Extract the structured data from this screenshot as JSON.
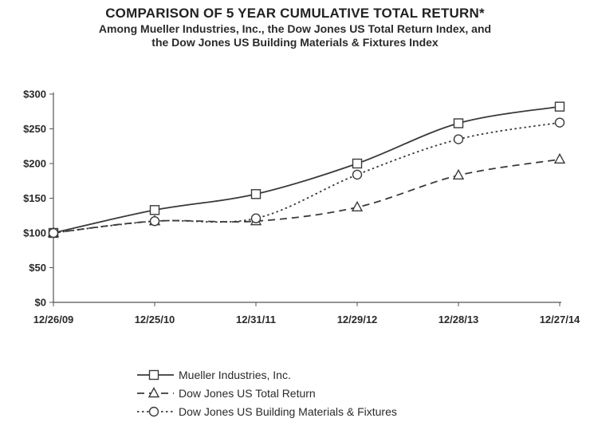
{
  "chart_data": {
    "type": "line",
    "title": "COMPARISON OF 5 YEAR CUMULATIVE TOTAL RETURN*",
    "subtitle": [
      "Among Mueller Industries, Inc., the Dow Jones US Total Return  Index, and",
      "the Dow Jones US Building Materials & Fixtures  Index"
    ],
    "categories": [
      "12/26/09",
      "12/25/10",
      "12/31/11",
      "12/29/12",
      "12/28/13",
      "12/27/14"
    ],
    "ylim": [
      0,
      300
    ],
    "yticks": [
      0,
      50,
      100,
      150,
      200,
      250,
      300
    ],
    "ytick_labels": [
      "$0",
      "$50",
      "$100",
      "$150",
      "$200",
      "$250",
      "$300"
    ],
    "grid": false,
    "legend_position": "bottom",
    "series": [
      {
        "name": "Mueller Industries, Inc.",
        "values": [
          100,
          133,
          156,
          200,
          258,
          282
        ],
        "marker": "square",
        "dash": "solid",
        "color": "#3a3a3a"
      },
      {
        "name": "Dow Jones US Total Return",
        "values": [
          100,
          117,
          117,
          137,
          183,
          206
        ],
        "marker": "triangle",
        "dash": "dashed",
        "color": "#3a3a3a"
      },
      {
        "name": "Dow Jones US Building Materials & Fixtures",
        "values": [
          100,
          117,
          121,
          184,
          235,
          259
        ],
        "marker": "circle",
        "dash": "dotted",
        "color": "#3a3a3a"
      }
    ]
  }
}
